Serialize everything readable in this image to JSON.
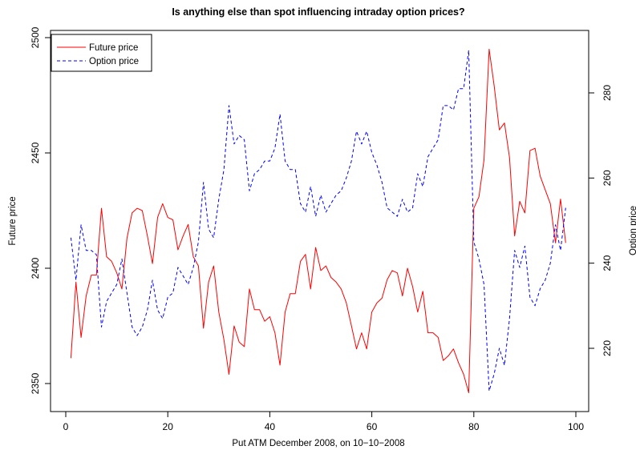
{
  "chart_data": {
    "type": "line",
    "title": "Is anything else than spot influencing intraday option prices?",
    "xlabel": "Put ATM December 2008, on 10−10−2008",
    "ylabel_left": "Future price",
    "ylabel_right": "Option price",
    "xlim": [
      1,
      98
    ],
    "ylim_left": [
      2345,
      2495
    ],
    "ylim_right": [
      209,
      289
    ],
    "x_ticks": [
      0,
      20,
      40,
      60,
      80,
      100
    ],
    "y_ticks_left": [
      2350,
      2400,
      2450,
      2500
    ],
    "y_ticks_right": [
      220,
      240,
      260,
      280
    ],
    "legend_position": "top-left",
    "grid": false,
    "series": [
      {
        "name": "Future price",
        "axis": "left",
        "color": "#ff0000",
        "style": "solid",
        "x": [
          1,
          2,
          3,
          4,
          5,
          6,
          7,
          8,
          9,
          10,
          11,
          12,
          13,
          14,
          15,
          16,
          17,
          18,
          19,
          20,
          21,
          22,
          23,
          24,
          25,
          26,
          27,
          28,
          29,
          30,
          31,
          32,
          33,
          34,
          35,
          36,
          37,
          38,
          39,
          40,
          41,
          42,
          43,
          44,
          45,
          46,
          47,
          48,
          49,
          50,
          51,
          52,
          53,
          54,
          55,
          56,
          57,
          58,
          59,
          60,
          61,
          62,
          63,
          64,
          65,
          66,
          67,
          68,
          69,
          70,
          71,
          72,
          73,
          74,
          75,
          76,
          77,
          78,
          79,
          80,
          81,
          82,
          83,
          84,
          85,
          86,
          87,
          88,
          89,
          90,
          91,
          92,
          93,
          94,
          95,
          96,
          97,
          98
        ],
        "values": [
          2361,
          2394,
          2370,
          2388,
          2397,
          2397,
          2426,
          2405,
          2403,
          2398,
          2391,
          2413,
          2424,
          2426,
          2425,
          2414,
          2402,
          2422,
          2428,
          2422,
          2421,
          2408,
          2414,
          2419,
          2405,
          2401,
          2374,
          2394,
          2401,
          2381,
          2369,
          2354,
          2375,
          2368,
          2366,
          2391,
          2382,
          2382,
          2377,
          2379,
          2372,
          2358,
          2381,
          2389,
          2389,
          2403,
          2406,
          2391,
          2409,
          2399,
          2401,
          2396,
          2394,
          2391,
          2385,
          2375,
          2365,
          2372,
          2365,
          2381,
          2385,
          2387,
          2395,
          2399,
          2398,
          2388,
          2400,
          2392,
          2381,
          2390,
          2372,
          2372,
          2370,
          2360,
          2362,
          2365,
          2359,
          2354,
          2346,
          2426,
          2431,
          2447,
          2495,
          2479,
          2460,
          2463,
          2448,
          2414,
          2429,
          2424,
          2451,
          2452,
          2440,
          2434,
          2428,
          2411,
          2430,
          2411
        ]
      },
      {
        "name": "Option price",
        "axis": "right",
        "color": "#0000ff",
        "style": "dashed",
        "x": [
          1,
          2,
          3,
          4,
          5,
          6,
          7,
          8,
          9,
          10,
          11,
          12,
          13,
          14,
          15,
          16,
          17,
          18,
          19,
          20,
          21,
          22,
          23,
          24,
          25,
          26,
          27,
          28,
          29,
          30,
          31,
          32,
          33,
          34,
          35,
          36,
          37,
          38,
          39,
          40,
          41,
          42,
          43,
          44,
          45,
          46,
          47,
          48,
          49,
          50,
          51,
          52,
          53,
          54,
          55,
          56,
          57,
          58,
          59,
          60,
          61,
          62,
          63,
          64,
          65,
          66,
          67,
          68,
          69,
          70,
          71,
          72,
          73,
          74,
          75,
          76,
          77,
          78,
          79,
          80,
          81,
          82,
          83,
          84,
          85,
          86,
          87,
          88,
          89,
          90,
          91,
          92,
          93,
          94,
          95,
          96,
          97,
          98
        ],
        "values": [
          246,
          236,
          249,
          243,
          243,
          242,
          225,
          231,
          233,
          235,
          241,
          233,
          225,
          223,
          225,
          229,
          236,
          229,
          227,
          232,
          233,
          239,
          237,
          235,
          239,
          245,
          259,
          248,
          246,
          255,
          262,
          277,
          268,
          270,
          269,
          257,
          261,
          262,
          264,
          264,
          267,
          275,
          264,
          262,
          262,
          254,
          252,
          258,
          251,
          256,
          252,
          254,
          256,
          257,
          260,
          264,
          271,
          268,
          271,
          266,
          263,
          259,
          253,
          252,
          251,
          255,
          252,
          253,
          261,
          258,
          265,
          267,
          269,
          277,
          277,
          276,
          281,
          281,
          290,
          245,
          241,
          235,
          210,
          214,
          220,
          216,
          227,
          243,
          239,
          244,
          232,
          230,
          234,
          236,
          240,
          249,
          243,
          253
        ]
      }
    ]
  }
}
